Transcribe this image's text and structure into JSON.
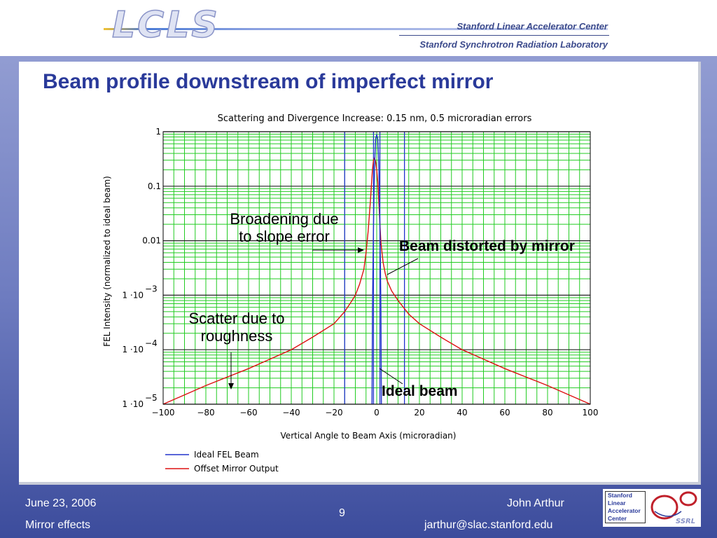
{
  "header": {
    "logo": "LCLS",
    "institution_1": "Stanford Linear Accelerator Center",
    "institution_2": "Stanford Synchrotron Radiation Laboratory"
  },
  "slide": {
    "title": "Beam profile downstream of imperfect mirror"
  },
  "callouts": {
    "broadening": "Broadening due to slope error",
    "broadening_line1": "Broadening due",
    "broadening_line2": "to slope error",
    "distorted": "Beam distorted by mirror",
    "scatter_line1": "Scatter due to",
    "scatter_line2": "roughness",
    "ideal": "Ideal beam"
  },
  "chart_data": {
    "type": "line",
    "title": "Scattering and Divergence Increase: 0.15 nm, 0.5 microradian errors",
    "xlabel": "Vertical Angle to Beam Axis (microradian)",
    "ylabel": "FEL Intensity (normalized to ideal beam)",
    "xlim": [
      -100,
      100
    ],
    "ylim": [
      1e-05,
      1
    ],
    "yscale": "log",
    "x_ticks": [
      "−100",
      "−80",
      "−60",
      "−40",
      "−20",
      "0",
      "20",
      "40",
      "60",
      "80",
      "100"
    ],
    "y_ticks": [
      {
        "value": 1,
        "base": "1",
        "exp": ""
      },
      {
        "value": 0.1,
        "base": "0.1",
        "exp": ""
      },
      {
        "value": 0.01,
        "base": "0.01",
        "exp": ""
      },
      {
        "value": 0.001,
        "base": "1 ·10",
        "exp": "−3"
      },
      {
        "value": 0.0001,
        "base": "1 ·10",
        "exp": "−4"
      },
      {
        "value": 1e-05,
        "base": "1 ·10",
        "exp": "−5"
      }
    ],
    "grid": true,
    "legend_position": "bottom-left",
    "vertical_markers": [
      -15,
      -1.5,
      1.5,
      13
    ],
    "series": [
      {
        "name": "Ideal FEL Beam",
        "color": "#2233cc",
        "points": [
          [
            -2.2,
            1e-05
          ],
          [
            -2,
            0.0005
          ],
          [
            -1.6,
            0.01
          ],
          [
            -1.2,
            0.1
          ],
          [
            -0.8,
            0.4
          ],
          [
            -0.5,
            0.75
          ],
          [
            0,
            0.88
          ],
          [
            0.5,
            0.75
          ],
          [
            0.8,
            0.4
          ],
          [
            1.2,
            0.1
          ],
          [
            1.6,
            0.01
          ],
          [
            2,
            0.0005
          ],
          [
            2.2,
            1e-05
          ]
        ]
      },
      {
        "name": "Offset Mirror Output",
        "color": "#dd1111",
        "points": [
          [
            -100,
            1e-05
          ],
          [
            -80,
            2.2e-05
          ],
          [
            -60,
            4.5e-05
          ],
          [
            -40,
            0.0001
          ],
          [
            -30,
            0.00017
          ],
          [
            -20,
            0.0003
          ],
          [
            -15,
            0.0005
          ],
          [
            -12,
            0.00075
          ],
          [
            -10,
            0.001
          ],
          [
            -8,
            0.0016
          ],
          [
            -6,
            0.003
          ],
          [
            -5,
            0.006
          ],
          [
            -4,
            0.015
          ],
          [
            -3,
            0.05
          ],
          [
            -2.5,
            0.1
          ],
          [
            -2,
            0.2
          ],
          [
            -1.5,
            0.3
          ],
          [
            -1,
            0.33
          ],
          [
            -0.5,
            0.28
          ],
          [
            0,
            0.2
          ],
          [
            0.5,
            0.12
          ],
          [
            1,
            0.05
          ],
          [
            1.5,
            0.02
          ],
          [
            2,
            0.009
          ],
          [
            3,
            0.004
          ],
          [
            4,
            0.0025
          ],
          [
            5,
            0.0018
          ],
          [
            7,
            0.0012
          ],
          [
            10,
            0.0008
          ],
          [
            15,
            0.00045
          ],
          [
            20,
            0.0003
          ],
          [
            30,
            0.00017
          ],
          [
            40,
            0.0001
          ],
          [
            60,
            4.5e-05
          ],
          [
            80,
            2.2e-05
          ],
          [
            100,
            1e-05
          ]
        ]
      }
    ]
  },
  "footer": {
    "date": "June 23, 2006",
    "topic": "Mirror effects",
    "page": "9",
    "author": "John Arthur",
    "email": "jarthur@slac.stanford.edu",
    "lab_line1": "Stanford",
    "lab_line2": "Linear",
    "lab_line3": "Accelerator",
    "lab_line4": "Center",
    "ssrl": "SSRL"
  }
}
